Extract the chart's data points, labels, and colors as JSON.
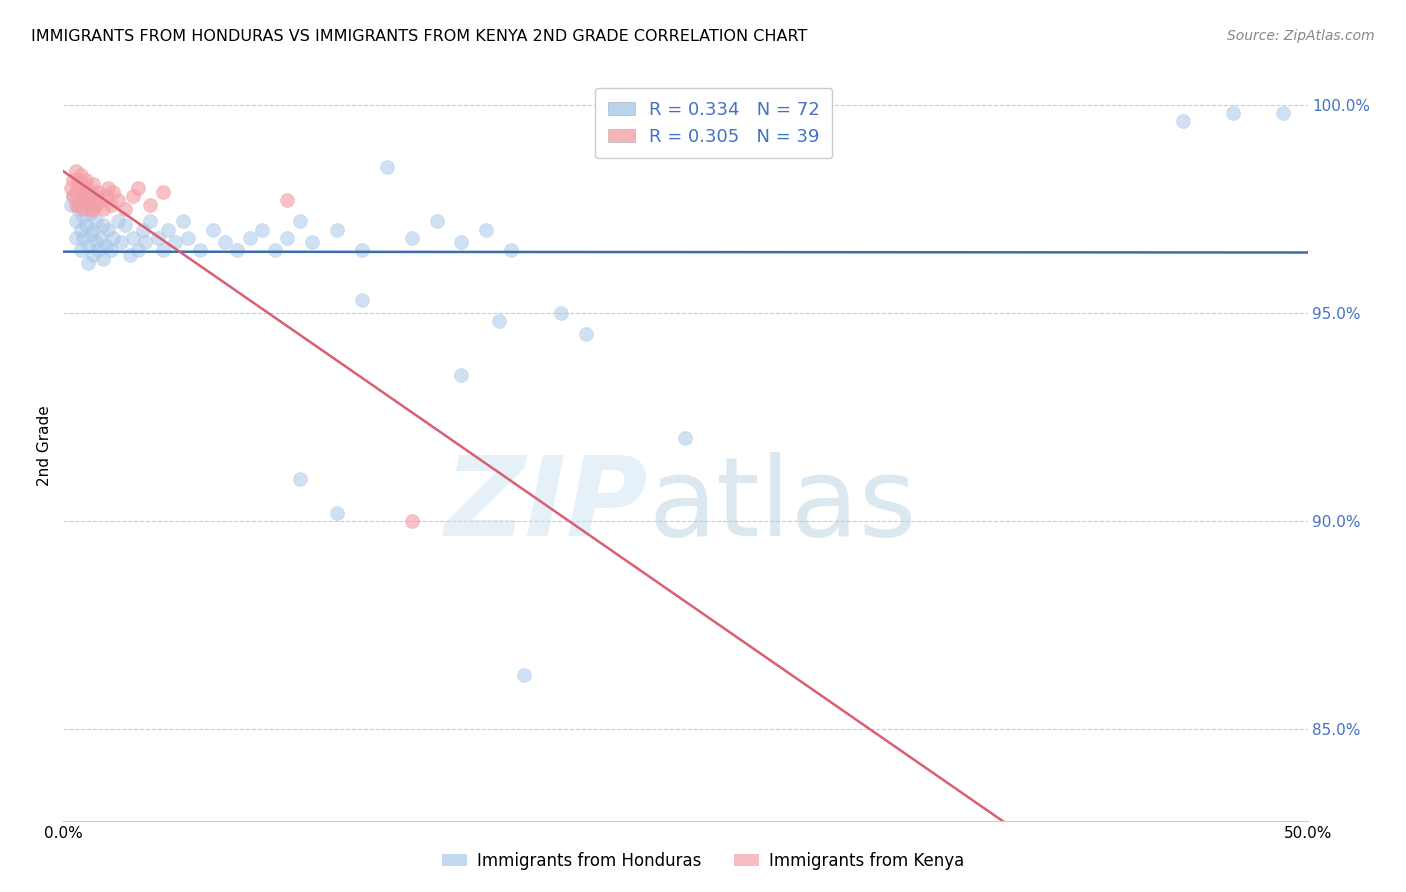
{
  "title": "IMMIGRANTS FROM HONDURAS VS IMMIGRANTS FROM KENYA 2ND GRADE CORRELATION CHART",
  "source": "Source: ZipAtlas.com",
  "xlabel_label": "Immigrants from Honduras",
  "ylabel_label": "2nd Grade",
  "xlabel2_label": "Immigrants from Kenya",
  "xlim": [
    0.0,
    0.5
  ],
  "ylim": [
    0.828,
    1.008
  ],
  "x_ticks": [
    0.0,
    0.1,
    0.2,
    0.3,
    0.4,
    0.5
  ],
  "x_tick_labels": [
    "0.0%",
    "",
    "",
    "",
    "",
    "50.0%"
  ],
  "y_ticks": [
    0.85,
    0.9,
    0.95,
    1.0
  ],
  "y_tick_labels": [
    "85.0%",
    "90.0%",
    "95.0%",
    "100.0%"
  ],
  "legend_r1": "R = 0.334",
  "legend_n1": "N = 72",
  "legend_r2": "R = 0.305",
  "legend_n2": "N = 39",
  "blue_color": "#a8c8e8",
  "pink_color": "#f4a0a8",
  "line_blue": "#3a6eaa",
  "line_pink": "#d95f72",
  "blue_scatter": [
    [
      0.003,
      0.976
    ],
    [
      0.004,
      0.978
    ],
    [
      0.005,
      0.972
    ],
    [
      0.005,
      0.968
    ],
    [
      0.006,
      0.975
    ],
    [
      0.007,
      0.97
    ],
    [
      0.007,
      0.965
    ],
    [
      0.008,
      0.973
    ],
    [
      0.008,
      0.968
    ],
    [
      0.009,
      0.976
    ],
    [
      0.009,
      0.971
    ],
    [
      0.01,
      0.966
    ],
    [
      0.01,
      0.962
    ],
    [
      0.011,
      0.974
    ],
    [
      0.011,
      0.969
    ],
    [
      0.012,
      0.964
    ],
    [
      0.012,
      0.97
    ],
    [
      0.013,
      0.967
    ],
    [
      0.013,
      0.972
    ],
    [
      0.014,
      0.965
    ],
    [
      0.015,
      0.968
    ],
    [
      0.016,
      0.963
    ],
    [
      0.016,
      0.971
    ],
    [
      0.017,
      0.966
    ],
    [
      0.018,
      0.97
    ],
    [
      0.019,
      0.965
    ],
    [
      0.02,
      0.968
    ],
    [
      0.022,
      0.972
    ],
    [
      0.023,
      0.967
    ],
    [
      0.025,
      0.971
    ],
    [
      0.027,
      0.964
    ],
    [
      0.028,
      0.968
    ],
    [
      0.03,
      0.965
    ],
    [
      0.032,
      0.97
    ],
    [
      0.033,
      0.967
    ],
    [
      0.035,
      0.972
    ],
    [
      0.038,
      0.968
    ],
    [
      0.04,
      0.965
    ],
    [
      0.042,
      0.97
    ],
    [
      0.045,
      0.967
    ],
    [
      0.048,
      0.972
    ],
    [
      0.05,
      0.968
    ],
    [
      0.055,
      0.965
    ],
    [
      0.06,
      0.97
    ],
    [
      0.065,
      0.967
    ],
    [
      0.07,
      0.965
    ],
    [
      0.075,
      0.968
    ],
    [
      0.08,
      0.97
    ],
    [
      0.085,
      0.965
    ],
    [
      0.09,
      0.968
    ],
    [
      0.095,
      0.972
    ],
    [
      0.1,
      0.967
    ],
    [
      0.11,
      0.97
    ],
    [
      0.12,
      0.965
    ],
    [
      0.13,
      0.985
    ],
    [
      0.14,
      0.968
    ],
    [
      0.15,
      0.972
    ],
    [
      0.16,
      0.967
    ],
    [
      0.17,
      0.97
    ],
    [
      0.18,
      0.965
    ],
    [
      0.2,
      0.95
    ],
    [
      0.21,
      0.945
    ],
    [
      0.25,
      0.92
    ],
    [
      0.16,
      0.935
    ],
    [
      0.095,
      0.91
    ],
    [
      0.11,
      0.902
    ],
    [
      0.12,
      0.953
    ],
    [
      0.175,
      0.948
    ],
    [
      0.185,
      0.863
    ],
    [
      0.49,
      0.998
    ],
    [
      0.47,
      0.998
    ],
    [
      0.45,
      0.996
    ]
  ],
  "pink_scatter": [
    [
      0.003,
      0.98
    ],
    [
      0.004,
      0.982
    ],
    [
      0.004,
      0.978
    ],
    [
      0.005,
      0.984
    ],
    [
      0.005,
      0.976
    ],
    [
      0.005,
      0.979
    ],
    [
      0.006,
      0.982
    ],
    [
      0.006,
      0.976
    ],
    [
      0.007,
      0.98
    ],
    [
      0.007,
      0.977
    ],
    [
      0.007,
      0.983
    ],
    [
      0.008,
      0.978
    ],
    [
      0.008,
      0.981
    ],
    [
      0.008,
      0.975
    ],
    [
      0.009,
      0.979
    ],
    [
      0.009,
      0.982
    ],
    [
      0.01,
      0.977
    ],
    [
      0.01,
      0.98
    ],
    [
      0.011,
      0.975
    ],
    [
      0.011,
      0.978
    ],
    [
      0.012,
      0.981
    ],
    [
      0.012,
      0.975
    ],
    [
      0.013,
      0.978
    ],
    [
      0.013,
      0.976
    ],
    [
      0.014,
      0.979
    ],
    [
      0.015,
      0.977
    ],
    [
      0.016,
      0.975
    ],
    [
      0.017,
      0.978
    ],
    [
      0.018,
      0.98
    ],
    [
      0.019,
      0.976
    ],
    [
      0.02,
      0.979
    ],
    [
      0.022,
      0.977
    ],
    [
      0.025,
      0.975
    ],
    [
      0.028,
      0.978
    ],
    [
      0.03,
      0.98
    ],
    [
      0.035,
      0.976
    ],
    [
      0.04,
      0.979
    ],
    [
      0.09,
      0.977
    ],
    [
      0.14,
      0.9
    ]
  ]
}
